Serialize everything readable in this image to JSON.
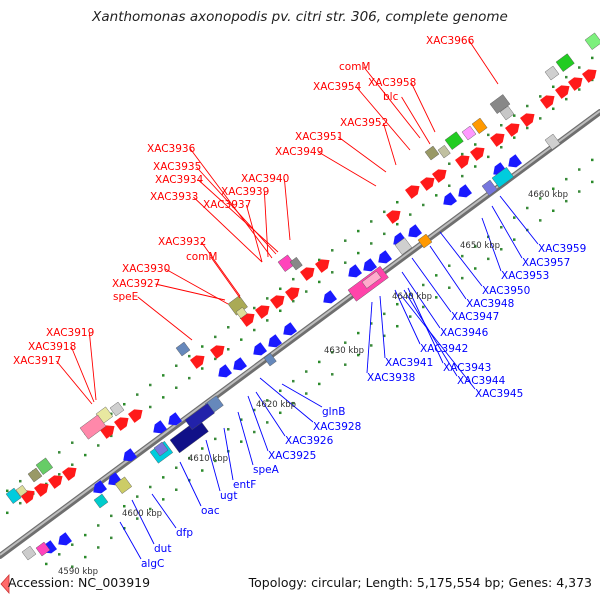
{
  "title": "Xanthomonas axonopodis pv. citri str. 306, complete genome",
  "footer": {
    "accession": "Accession: NC_003919",
    "stats": "Topology: circular; Length: 5,175,554 bp; Genes: 4,373"
  },
  "colors": {
    "forward_label": "#ff0000",
    "reverse_label": "#0000ff",
    "forward_gene": "#ff1a1a",
    "reverse_gene": "#1a1aff",
    "backbone": "#8c8c8c"
  },
  "icons": {
    "nav": "left-arrow-icon"
  },
  "kbp_ticks": [
    "4590 kbp",
    "4600 kbp",
    "4610 kbp",
    "4620 kbp",
    "4630 kbp",
    "4640 kbp",
    "4650 kbp",
    "4660 kbp"
  ],
  "forward_labels": [
    "XAC3966",
    "comM",
    "XAC3958",
    "XAC3954",
    "blc",
    "XAC3952",
    "XAC3951",
    "XAC3949",
    "XAC3936",
    "XAC3935",
    "XAC3934",
    "XAC3940",
    "XAC3939",
    "XAC3933",
    "XAC3937",
    "XAC3932",
    "comM",
    "XAC3930",
    "XAC3927",
    "speE",
    "XAC3919",
    "XAC3918",
    "XAC3917"
  ],
  "reverse_labels": [
    "XAC3959",
    "XAC3957",
    "XAC3953",
    "XAC3950",
    "XAC3948",
    "XAC3947",
    "XAC3946",
    "XAC3942",
    "XAC3941",
    "XAC3938",
    "XAC3943",
    "XAC3944",
    "XAC3945",
    "glnB",
    "XAC3928",
    "XAC3926",
    "XAC3925",
    "speA",
    "entF",
    "ugt",
    "oac",
    "dfp",
    "dut",
    "algC"
  ]
}
